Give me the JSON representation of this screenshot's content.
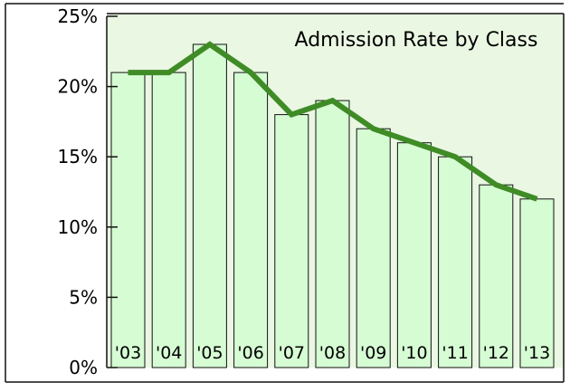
{
  "chart_data": {
    "type": "bar",
    "title": "Admission Rate by Class",
    "categories": [
      "'03",
      "'04",
      "'05",
      "'06",
      "'07",
      "'08",
      "'09",
      "'10",
      "'11",
      "'12",
      "'13"
    ],
    "series": [
      {
        "values": [
          21,
          21,
          23,
          21,
          18,
          19,
          17,
          16,
          15,
          13,
          12
        ]
      }
    ],
    "overlay_line": {
      "values": [
        21,
        21,
        23,
        21,
        18,
        19,
        17,
        16,
        15,
        13,
        12
      ]
    },
    "ylim": [
      0,
      25
    ],
    "y_ticks": [
      "0%",
      "5%",
      "10%",
      "15%",
      "20%",
      "25%"
    ],
    "xlabel": "",
    "ylabel": "",
    "grid": false,
    "colors": {
      "plot_background": "#eaf7e3",
      "bar_fill": "#d6fcd4",
      "bar_stroke": "#111111",
      "line": "#3f8c26"
    }
  }
}
